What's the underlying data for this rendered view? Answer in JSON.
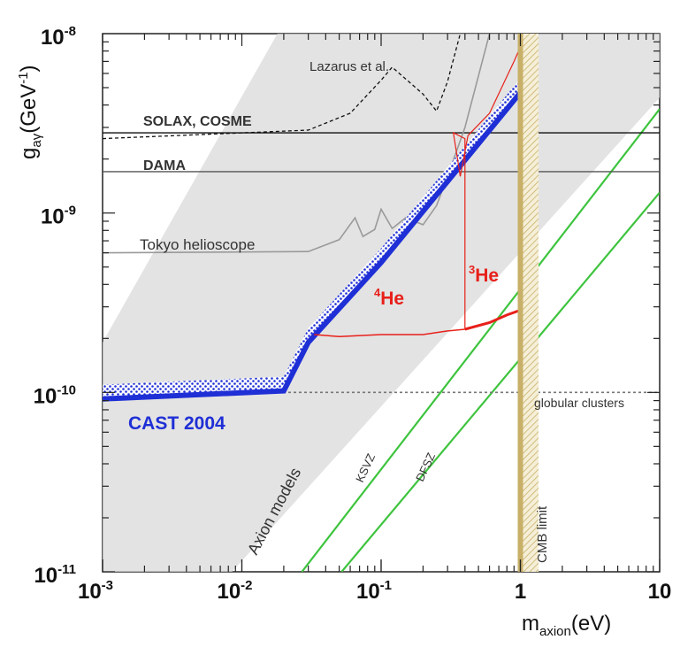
{
  "chart_data": {
    "type": "line",
    "xscale": "log",
    "yscale": "log",
    "xlim": [
      0.001,
      10
    ],
    "ylim": [
      1e-11,
      1e-08
    ],
    "xlabel": {
      "base": "m",
      "sub": "axion",
      "unit": "(eV)"
    },
    "ylabel": {
      "base": "g",
      "sub": "aγ",
      "unit_pre": "(GeV",
      "unit_sup": "-1",
      "unit_post": ")"
    },
    "x_ticks": [
      {
        "value": 0.001,
        "base": "10",
        "exp": "-3"
      },
      {
        "value": 0.01,
        "base": "10",
        "exp": "-2"
      },
      {
        "value": 0.1,
        "base": "10",
        "exp": "-1"
      },
      {
        "value": 1,
        "base": "1",
        "exp": ""
      },
      {
        "value": 10,
        "base": "10",
        "exp": ""
      }
    ],
    "y_ticks": [
      {
        "value": 1e-11,
        "base": "10",
        "exp": "-11"
      },
      {
        "value": 1e-10,
        "base": "10",
        "exp": "-10"
      },
      {
        "value": 1e-09,
        "base": "10",
        "exp": "-9"
      },
      {
        "value": 1e-08,
        "base": "10",
        "exp": "-8"
      }
    ],
    "colors": {
      "cast": "#1f2fd6",
      "he": "#e8201a",
      "model_line": "#3ec43e",
      "band": "#d9d9d9",
      "cmb": "#c8b068",
      "limit_grey": "#9a9a9a"
    },
    "axion_band": {
      "label": "Axion models",
      "lower_edge": [
        [
          0.0085,
          1e-11
        ],
        [
          10,
          4.4e-09
        ]
      ],
      "upper_edge": [
        [
          0.001,
          1.9e-10
        ],
        [
          0.018,
          1e-08
        ]
      ]
    },
    "model_lines": [
      {
        "name": "KSVZ",
        "points": [
          [
            0.027,
            1e-11
          ],
          [
            10,
            3.8e-09
          ]
        ]
      },
      {
        "name": "DFSZ",
        "points": [
          [
            0.052,
            1e-11
          ],
          [
            10,
            1.3e-09
          ]
        ]
      }
    ],
    "horizontal_limits": [
      {
        "name": "SOLAX, COSME",
        "value": 2.8e-09
      },
      {
        "name": "DAMA",
        "value": 1.7e-09
      },
      {
        "name": "globular clusters",
        "value": 1e-10
      }
    ],
    "series": [
      {
        "name": "CAST 2004",
        "points": [
          [
            0.001,
            9.2e-11
          ],
          [
            0.02,
            1.02e-10
          ],
          [
            0.03,
            1.9e-10
          ],
          [
            0.1,
            5.3e-10
          ],
          [
            0.3,
            1.5e-09
          ],
          [
            1,
            4.7e-09
          ],
          [
            1.3,
            1e-08
          ]
        ]
      },
      {
        "name": "Tokyo helioscope",
        "points": [
          [
            0.001,
            6e-10
          ],
          [
            0.03,
            6.1e-10
          ],
          [
            0.05,
            7.1e-10
          ],
          [
            0.065,
            9.4e-10
          ],
          [
            0.074,
            7.4e-10
          ],
          [
            0.09,
            8.1e-10
          ],
          [
            0.1,
            1.05e-09
          ],
          [
            0.12,
            8.2e-10
          ],
          [
            0.15,
            9.4e-10
          ],
          [
            0.2,
            8.6e-10
          ],
          [
            0.25,
            1.1e-09
          ],
          [
            0.3,
            1.6e-09
          ],
          [
            0.4,
            3e-09
          ],
          [
            0.6,
            1e-08
          ]
        ]
      },
      {
        "name": "Lazarus et al.",
        "points": [
          [
            0.001,
            2.6e-09
          ],
          [
            0.03,
            2.9e-09
          ],
          [
            0.06,
            3.6e-09
          ],
          [
            0.1,
            5.5e-09
          ],
          [
            0.12,
            6.5e-09
          ],
          [
            0.2,
            4.6e-09
          ],
          [
            0.25,
            3.7e-09
          ],
          [
            0.3,
            5.4e-09
          ],
          [
            0.37,
            1e-08
          ]
        ]
      },
      {
        "name": "4He",
        "label_sup": "4",
        "label_base": "He",
        "points": [
          [
            0.033,
            2.1e-10
          ],
          [
            0.05,
            2.05e-10
          ],
          [
            0.1,
            2.1e-10
          ],
          [
            0.2,
            2.1e-10
          ],
          [
            0.3,
            2.2e-10
          ],
          [
            0.4,
            2.25e-10
          ]
        ]
      },
      {
        "name": "3He",
        "label_sup": "3",
        "label_base": "He",
        "points": [
          [
            0.4,
            2.25e-10
          ],
          [
            0.6,
            2.45e-10
          ],
          [
            0.8,
            2.7e-10
          ],
          [
            1.1,
            2.95e-10
          ],
          [
            1.2,
            3e-10
          ]
        ]
      }
    ],
    "he_dips": [
      [
        0.4,
        2.25e-10
      ],
      [
        0.4,
        2.6e-09
      ],
      [
        0.33,
        2.8e-09
      ],
      [
        0.37,
        1.6e-09
      ],
      [
        0.42,
        2.7e-09
      ],
      [
        0.6,
        3.6e-09
      ],
      [
        0.9,
        7e-09
      ],
      [
        1.1,
        1e-08
      ]
    ],
    "cmb_limit": {
      "label": "CMB limit",
      "x_from": 1.0,
      "x_to": 1.35
    },
    "labels": {
      "lazarus": "Lazarus et al.",
      "solax": "SOLAX, COSME",
      "dama": "DAMA",
      "tokyo": "Tokyo helioscope",
      "cast": "CAST 2004",
      "globular": "globular clusters",
      "axion_models": "Axion models",
      "ksvz": "KSVZ",
      "dfsz": "DFSZ",
      "cmb": "CMB limit"
    }
  }
}
